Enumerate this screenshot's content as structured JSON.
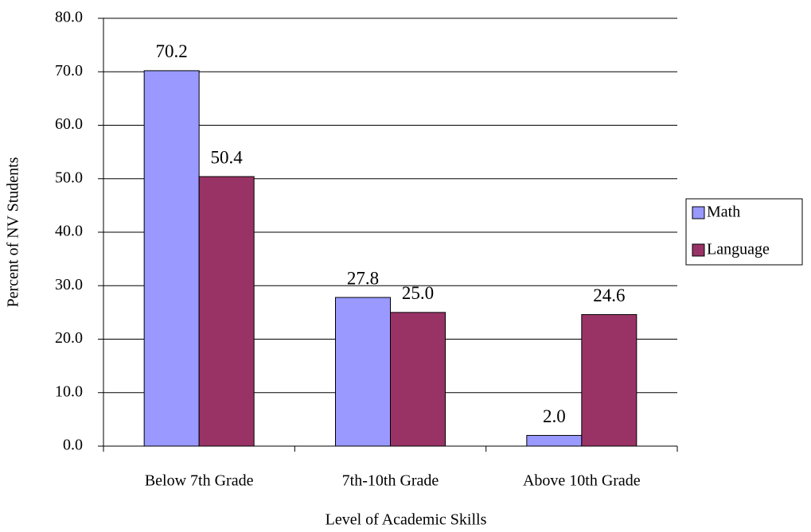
{
  "chart_data": {
    "type": "bar",
    "x_label": "Level of Academic Skills",
    "y_label": "Percent of NV Students",
    "categories": [
      "Below 7th Grade",
      "7th-10th Grade",
      "Above 10th Grade"
    ],
    "series": [
      {
        "name": "Math",
        "color": "#9999ff",
        "values": [
          70.2,
          27.8,
          2.0
        ],
        "value_labels": [
          "70.2",
          "27.8",
          "2.0"
        ]
      },
      {
        "name": "Language",
        "color": "#993366",
        "values": [
          50.4,
          25.0,
          24.6
        ],
        "value_labels": [
          "50.4",
          "25.0",
          "24.6"
        ]
      }
    ],
    "ylim": [
      0,
      80
    ],
    "yticks": [
      {
        "value": 0,
        "label": "0.0"
      },
      {
        "value": 10,
        "label": "10.0"
      },
      {
        "value": 20,
        "label": "20.0"
      },
      {
        "value": 30,
        "label": "30.0"
      },
      {
        "value": 40,
        "label": "40.0"
      },
      {
        "value": 50,
        "label": "50.0"
      },
      {
        "value": 60,
        "label": "60.0"
      },
      {
        "value": 70,
        "label": "70.0"
      },
      {
        "value": 80,
        "label": "80.0"
      }
    ],
    "grid": true,
    "legend": "right"
  }
}
